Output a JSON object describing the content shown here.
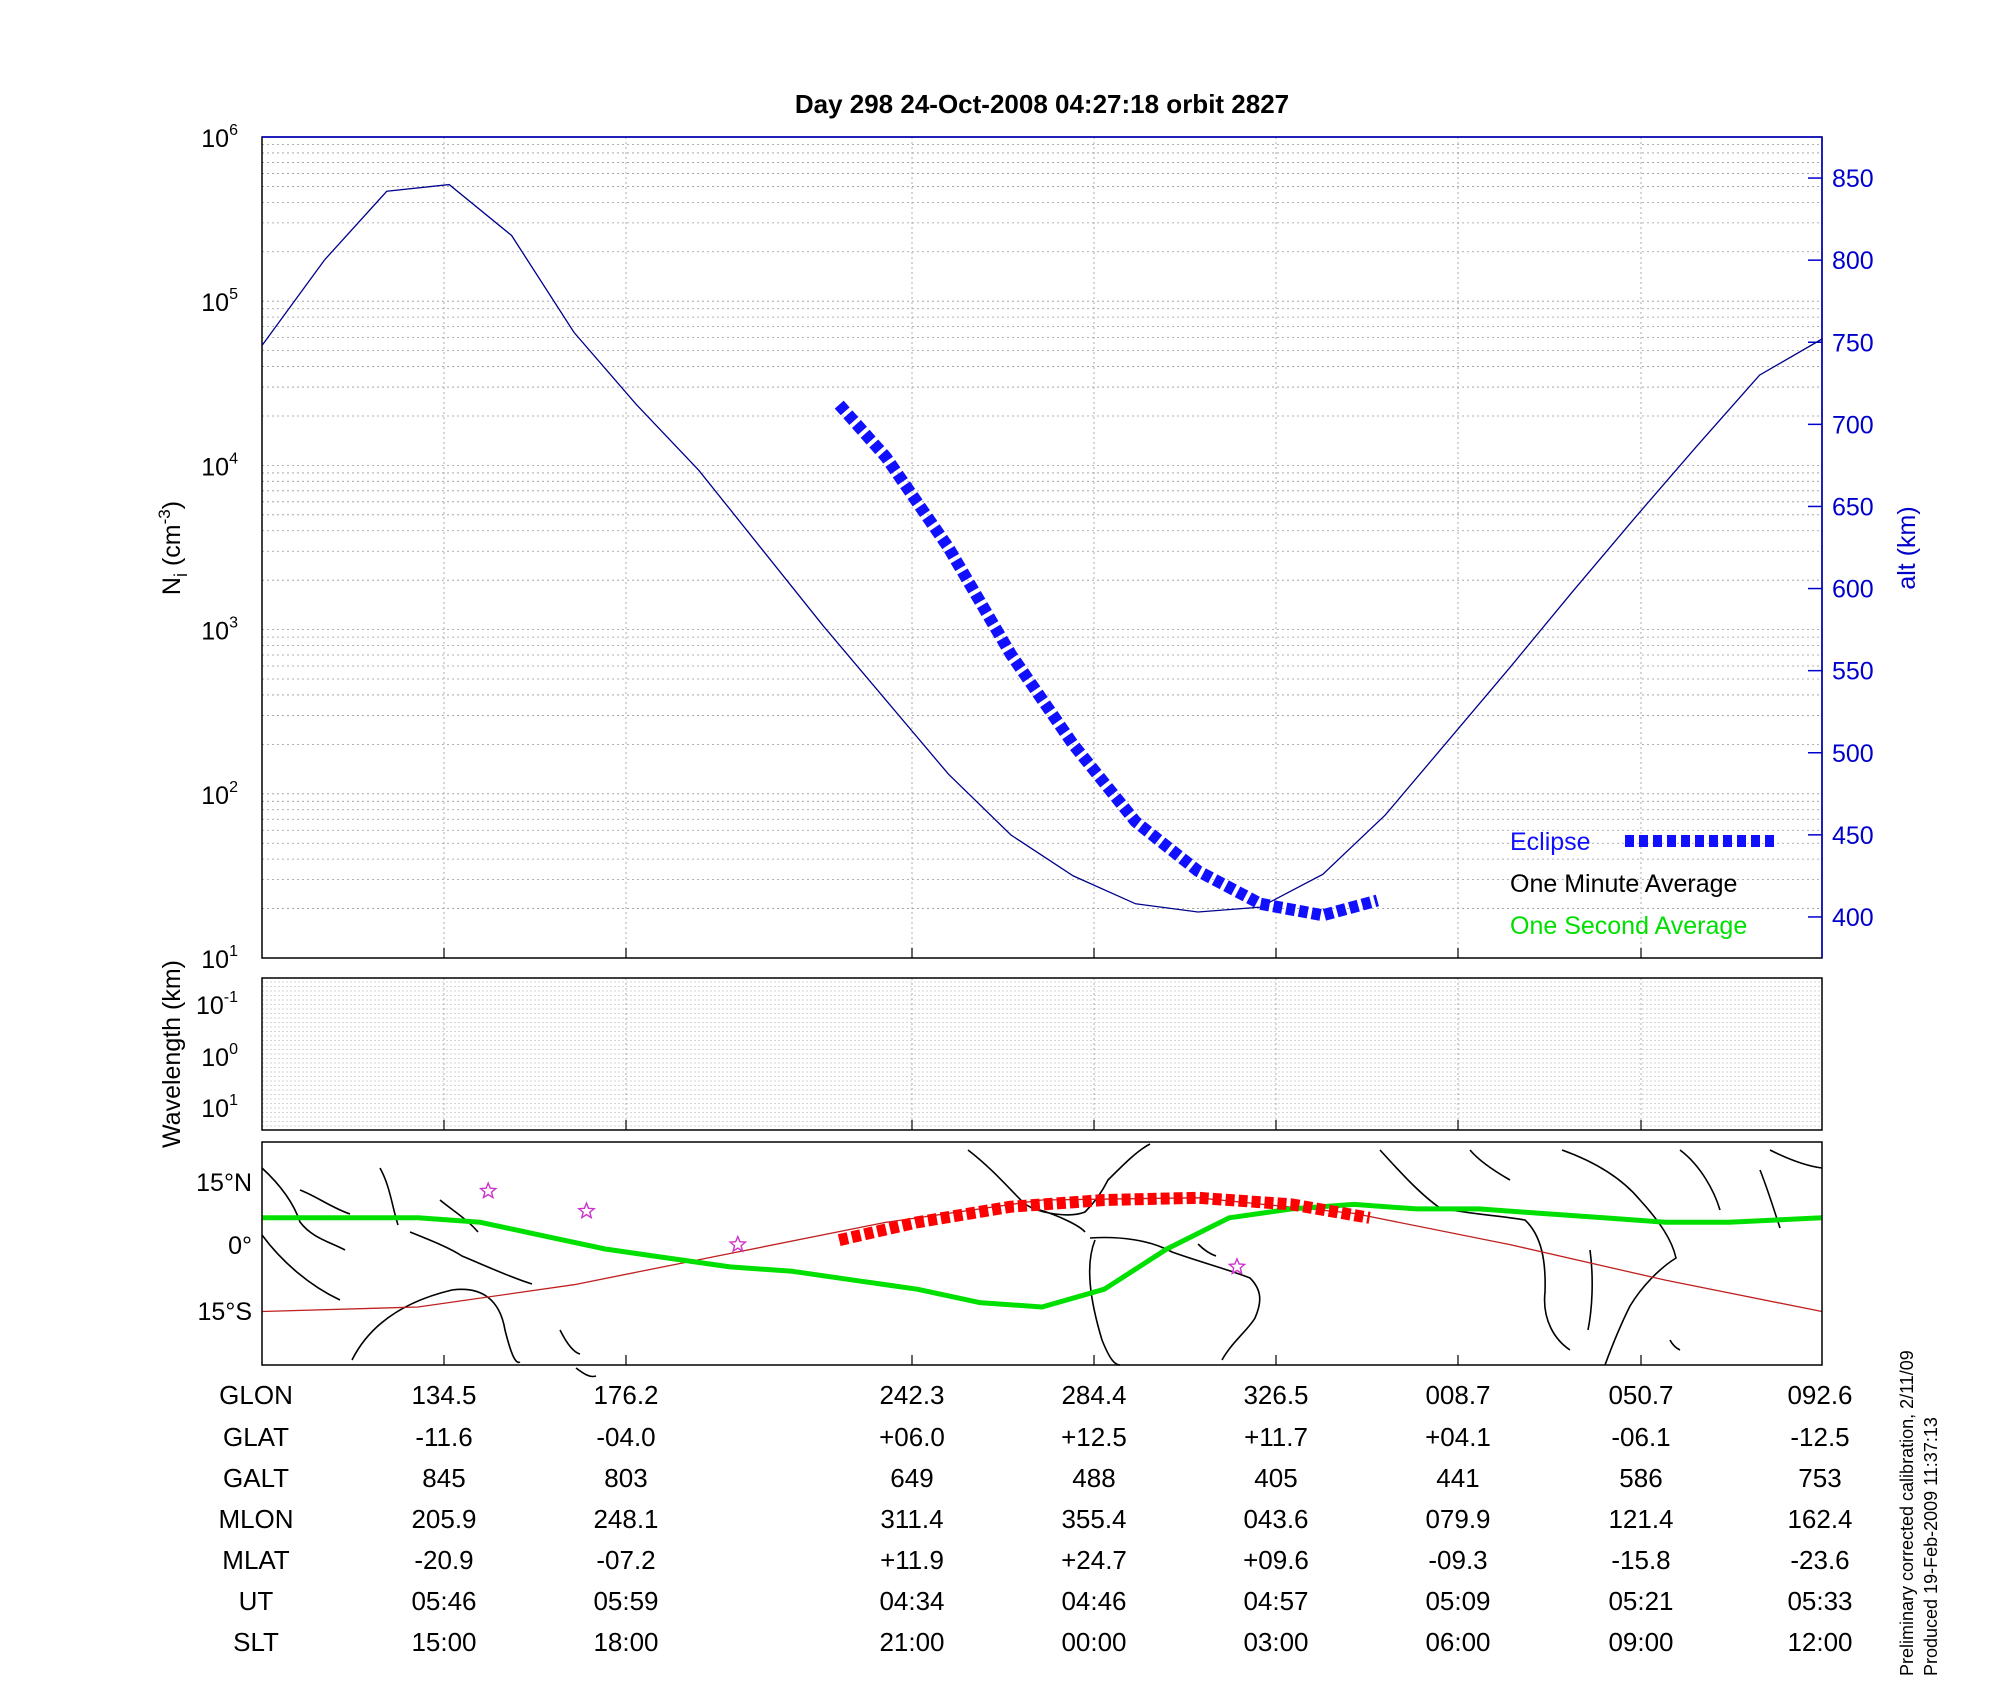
{
  "chart_data": [
    {
      "type": "line",
      "title": "Day 298  24-Oct-2008 04:27:18   orbit 2827",
      "ylabel_left": "N",
      "ylabel_left_sub": "i",
      "ylabel_left_unit": " (cm",
      "ylabel_left_unit_exp": "-3",
      "ylabel_left_close": ")",
      "ylabel_right": "alt (km)",
      "y_scale_left": "log",
      "ylim_left": [
        10,
        1000000
      ],
      "yticks_left": [
        {
          "base": "10",
          "exp": "1"
        },
        {
          "base": "10",
          "exp": "2"
        },
        {
          "base": "10",
          "exp": "3"
        },
        {
          "base": "10",
          "exp": "4"
        },
        {
          "base": "10",
          "exp": "5"
        },
        {
          "base": "10",
          "exp": "6"
        }
      ],
      "ylim_right": [
        375,
        875
      ],
      "yticks_right": [
        "400",
        "450",
        "500",
        "550",
        "600",
        "650",
        "700",
        "750",
        "800",
        "850"
      ],
      "grid": true,
      "legend_position": "bottom-right",
      "legend": [
        {
          "label": "Eclipse",
          "color": "#1010ff"
        },
        {
          "label": "One Minute Average",
          "color": "#000000"
        },
        {
          "label": "One Second Average",
          "color": "#00e000"
        }
      ],
      "series": [
        {
          "name": "alt (km)",
          "x": [
            0,
            4,
            8,
            12,
            16,
            20,
            24,
            28,
            32,
            36,
            40,
            44,
            48,
            52,
            56,
            60,
            64,
            68,
            72,
            76,
            80,
            84,
            88,
            92,
            96,
            100
          ],
          "y": [
            748,
            800,
            842,
            846,
            815,
            756,
            712,
            672,
            623,
            577,
            532,
            487,
            450,
            425,
            408,
            403,
            406,
            426,
            462,
            507,
            552,
            598,
            643,
            687,
            730,
            752
          ]
        },
        {
          "name": "Eclipse",
          "x": [
            37,
            40,
            44,
            48,
            52,
            56,
            60,
            64,
            68,
            71.5
          ],
          "y": [
            712,
            680,
            625,
            560,
            505,
            458,
            428,
            408,
            401,
            410
          ]
        }
      ]
    },
    {
      "type": "heatmap",
      "ylabel": "Wavelength (km)",
      "yticks": [
        {
          "base": "10",
          "exp": "-1"
        },
        {
          "base": "10",
          "exp": "0"
        },
        {
          "base": "10",
          "exp": "1"
        }
      ],
      "grid": true
    },
    {
      "type": "line",
      "yticks": [
        "15°N",
        "0°",
        "15°S"
      ],
      "ylim": [
        -25,
        25
      ],
      "series": [
        {
          "name": "One Second Average",
          "color": "#00e000",
          "x": [
            0,
            4,
            10,
            14,
            18,
            22,
            26,
            30,
            34,
            38,
            42,
            46,
            50,
            54,
            58,
            62,
            66,
            70,
            74,
            78,
            82,
            86,
            90,
            94,
            100
          ],
          "y": [
            8,
            8,
            8,
            7,
            4,
            1,
            -1,
            -3,
            -4,
            -6,
            -8,
            -11,
            -12,
            -8,
            1,
            8,
            10,
            11,
            10,
            10,
            9,
            8,
            7,
            7,
            8
          ]
        },
        {
          "name": "ground track",
          "color": "#c02020",
          "x": [
            0,
            10,
            20,
            30,
            40,
            50,
            60,
            70,
            80,
            90,
            100
          ],
          "y": [
            -13,
            -12,
            -7,
            0,
            7,
            12,
            12.5,
            9,
            2,
            -6,
            -13
          ]
        },
        {
          "name": "Eclipse",
          "color": "#ff0000",
          "x": [
            37,
            42,
            48,
            54,
            60,
            66,
            71
          ],
          "y": [
            3,
            7,
            10.5,
            12,
            12.5,
            11,
            8
          ]
        }
      ],
      "markers": [
        {
          "x": 14.5,
          "y": 14
        },
        {
          "x": 20.8,
          "y": 9.5
        },
        {
          "x": 30.5,
          "y": 2
        },
        {
          "x": 62.5,
          "y": -3
        }
      ]
    }
  ],
  "table": {
    "row_labels": [
      "GLON",
      "GLAT",
      "GALT",
      "MLON",
      "MLAT",
      "UT",
      "SLT"
    ],
    "columns": [
      [
        "134.5",
        "-11.6",
        "845",
        "205.9",
        "-20.9",
        "05:46",
        "15:00"
      ],
      [
        "176.2",
        "-04.0",
        "803",
        "248.1",
        "-07.2",
        "05:59",
        "18:00"
      ],
      [
        "242.3",
        "+06.0",
        "649",
        "311.4",
        "+11.9",
        "04:34",
        "21:00"
      ],
      [
        "284.4",
        "+12.5",
        "488",
        "355.4",
        "+24.7",
        "04:46",
        "00:00"
      ],
      [
        "326.5",
        "+11.7",
        "405",
        "043.6",
        "+09.6",
        "04:57",
        "03:00"
      ],
      [
        "008.7",
        "+04.1",
        "441",
        "079.9",
        "-09.3",
        "05:09",
        "06:00"
      ],
      [
        "050.7",
        "-06.1",
        "586",
        "121.4",
        "-15.8",
        "05:21",
        "09:00"
      ],
      [
        "092.6",
        "-12.5",
        "753",
        "162.4",
        "-23.6",
        "05:33",
        "12:00"
      ]
    ]
  },
  "footer": {
    "line1": "Preliminary corrected calibration, 2/11/09",
    "line2": "Produced 19-Feb-2009 11:37:13"
  },
  "colors": {
    "altitude": "#00008b",
    "axis_right": "#0000cc",
    "eclipse": "#1010ff",
    "eclipse_track": "#ff0000",
    "one_second": "#00e000",
    "ground_track": "#c02020",
    "marker": "#cc33cc"
  }
}
